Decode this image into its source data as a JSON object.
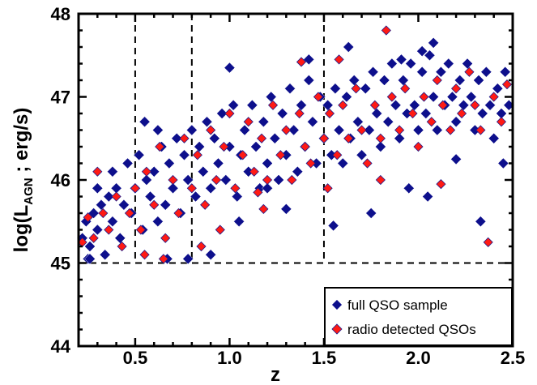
{
  "chart_data": {
    "type": "scatter",
    "title": "",
    "xlabel": "z",
    "ylabel": {
      "prefix": "log(L",
      "subscript": "AGN",
      "suffix": " ; erg/s)"
    },
    "xlim": [
      0.2,
      2.5
    ],
    "ylim": [
      44,
      48
    ],
    "x_ticks": [
      0.5,
      1.0,
      1.5,
      2.0,
      2.5
    ],
    "x_tick_labels": [
      "0.5",
      "1.0",
      "1.5",
      "2.0",
      "2.5"
    ],
    "y_ticks": [
      44,
      45,
      46,
      47,
      48
    ],
    "y_tick_labels": [
      "44",
      "45",
      "46",
      "47",
      "48"
    ],
    "reference_lines": {
      "vertical_dashed_x": [
        0.5,
        0.8,
        1.5
      ],
      "horizontal_dashed_y": 45,
      "vertical_top_y": 48
    },
    "legend": {
      "position": "bottom-right",
      "entries": [
        "full QSO sample",
        "radio detected QSOs"
      ]
    },
    "series": [
      {
        "name": "full QSO sample",
        "marker": "diamond",
        "color": "#0d0f8c",
        "points": [
          [
            0.22,
            45.3
          ],
          [
            0.24,
            45.5
          ],
          [
            0.26,
            45.2
          ],
          [
            0.28,
            45.6
          ],
          [
            0.3,
            45.4
          ],
          [
            0.32,
            45.7
          ],
          [
            0.34,
            45.1
          ],
          [
            0.36,
            45.8
          ],
          [
            0.38,
            45.5
          ],
          [
            0.4,
            45.9
          ],
          [
            0.42,
            45.3
          ],
          [
            0.44,
            45.7
          ],
          [
            0.46,
            46.2
          ],
          [
            0.48,
            45.6
          ],
          [
            0.5,
            45.9
          ],
          [
            0.52,
            46.3
          ],
          [
            0.54,
            45.4
          ],
          [
            0.56,
            46.0
          ],
          [
            0.58,
            45.8
          ],
          [
            0.6,
            46.1
          ],
          [
            0.62,
            45.5
          ],
          [
            0.64,
            46.4
          ],
          [
            0.66,
            45.7
          ],
          [
            0.68,
            46.2
          ],
          [
            0.7,
            45.9
          ],
          [
            0.72,
            46.5
          ],
          [
            0.74,
            45.6
          ],
          [
            0.76,
            46.3
          ],
          [
            0.78,
            46.0
          ],
          [
            0.8,
            46.6
          ],
          [
            0.82,
            45.8
          ],
          [
            0.84,
            46.4
          ],
          [
            0.86,
            46.1
          ],
          [
            0.88,
            46.7
          ],
          [
            0.9,
            45.9
          ],
          [
            0.92,
            46.5
          ],
          [
            0.94,
            46.2
          ],
          [
            0.96,
            46.8
          ],
          [
            0.98,
            46.0
          ],
          [
            1.0,
            46.4
          ],
          [
            1.02,
            46.9
          ],
          [
            1.04,
            45.8
          ],
          [
            1.06,
            46.3
          ],
          [
            1.08,
            46.6
          ],
          [
            1.1,
            46.1
          ],
          [
            1.12,
            46.9
          ],
          [
            1.14,
            46.4
          ],
          [
            1.16,
            45.9
          ],
          [
            1.18,
            46.7
          ],
          [
            1.2,
            46.2
          ],
          [
            1.22,
            47.0
          ],
          [
            1.24,
            46.5
          ],
          [
            1.26,
            46.0
          ],
          [
            1.28,
            46.8
          ],
          [
            1.3,
            46.3
          ],
          [
            1.32,
            47.1
          ],
          [
            1.34,
            46.6
          ],
          [
            1.36,
            46.1
          ],
          [
            1.38,
            46.9
          ],
          [
            1.4,
            46.4
          ],
          [
            1.42,
            47.2
          ],
          [
            1.44,
            46.7
          ],
          [
            1.46,
            46.2
          ],
          [
            1.48,
            47.0
          ],
          [
            1.5,
            46.5
          ],
          [
            1.52,
            46.9
          ],
          [
            1.54,
            46.3
          ],
          [
            1.56,
            47.1
          ],
          [
            1.58,
            46.6
          ],
          [
            1.6,
            46.2
          ],
          [
            1.62,
            47.0
          ],
          [
            1.64,
            46.5
          ],
          [
            1.66,
            47.2
          ],
          [
            1.68,
            46.7
          ],
          [
            1.7,
            46.3
          ],
          [
            1.72,
            47.1
          ],
          [
            1.74,
            46.6
          ],
          [
            1.76,
            47.3
          ],
          [
            1.78,
            46.8
          ],
          [
            1.8,
            46.4
          ],
          [
            1.82,
            47.2
          ],
          [
            1.84,
            46.7
          ],
          [
            1.86,
            47.4
          ],
          [
            1.88,
            46.9
          ],
          [
            1.9,
            46.5
          ],
          [
            1.92,
            47.2
          ],
          [
            1.94,
            46.8
          ],
          [
            1.96,
            47.4
          ],
          [
            1.98,
            46.9
          ],
          [
            2.0,
            46.6
          ],
          [
            2.02,
            47.3
          ],
          [
            2.04,
            46.8
          ],
          [
            2.06,
            47.5
          ],
          [
            2.08,
            47.0
          ],
          [
            2.1,
            46.6
          ],
          [
            2.12,
            47.3
          ],
          [
            2.14,
            46.9
          ],
          [
            2.16,
            47.4
          ],
          [
            2.18,
            47.0
          ],
          [
            2.2,
            46.7
          ],
          [
            2.22,
            47.2
          ],
          [
            2.24,
            46.9
          ],
          [
            2.26,
            47.4
          ],
          [
            2.28,
            47.0
          ],
          [
            2.3,
            46.6
          ],
          [
            2.32,
            47.2
          ],
          [
            2.34,
            46.8
          ],
          [
            2.36,
            47.3
          ],
          [
            2.38,
            46.9
          ],
          [
            2.4,
            46.5
          ],
          [
            2.42,
            47.1
          ],
          [
            2.44,
            46.8
          ],
          [
            2.46,
            47.3
          ],
          [
            2.48,
            46.9
          ],
          [
            0.55,
            46.7
          ],
          [
            0.62,
            46.6
          ],
          [
            1.0,
            47.35
          ],
          [
            1.42,
            47.45
          ],
          [
            1.63,
            47.6
          ],
          [
            2.02,
            47.55
          ],
          [
            2.08,
            47.65
          ],
          [
            1.91,
            47.45
          ],
          [
            2.33,
            45.5
          ],
          [
            0.9,
            45.1
          ],
          [
            0.78,
            45.05
          ],
          [
            0.67,
            45.05
          ],
          [
            1.55,
            45.45
          ],
          [
            1.75,
            45.6
          ],
          [
            2.05,
            45.8
          ],
          [
            1.3,
            45.65
          ],
          [
            1.2,
            45.9
          ],
          [
            1.05,
            45.5
          ],
          [
            0.25,
            45.05
          ],
          [
            0.3,
            45.9
          ],
          [
            0.38,
            46.1
          ],
          [
            0.26,
            45.05
          ],
          [
            2.45,
            46.2
          ],
          [
            2.2,
            46.25
          ],
          [
            1.95,
            45.9
          ]
        ]
      },
      {
        "name": "radio detected QSOs",
        "marker": "diamond",
        "color": "#ff1a14",
        "points": [
          [
            0.22,
            45.25
          ],
          [
            0.25,
            45.55
          ],
          [
            0.28,
            45.3
          ],
          [
            0.3,
            46.1
          ],
          [
            0.33,
            45.6
          ],
          [
            0.36,
            45.4
          ],
          [
            0.4,
            45.8
          ],
          [
            0.43,
            45.2
          ],
          [
            0.47,
            45.6
          ],
          [
            0.5,
            45.9
          ],
          [
            0.53,
            45.4
          ],
          [
            0.56,
            46.1
          ],
          [
            0.6,
            45.7
          ],
          [
            0.63,
            46.4
          ],
          [
            0.66,
            45.3
          ],
          [
            0.7,
            46.0
          ],
          [
            0.73,
            45.6
          ],
          [
            0.76,
            46.5
          ],
          [
            0.8,
            45.9
          ],
          [
            0.83,
            46.3
          ],
          [
            0.87,
            45.7
          ],
          [
            0.9,
            46.6
          ],
          [
            0.93,
            46.0
          ],
          [
            0.97,
            46.4
          ],
          [
            1.0,
            46.8
          ],
          [
            1.03,
            45.9
          ],
          [
            1.07,
            46.3
          ],
          [
            1.1,
            46.7
          ],
          [
            1.13,
            46.1
          ],
          [
            1.17,
            46.5
          ],
          [
            1.2,
            46.0
          ],
          [
            1.23,
            46.9
          ],
          [
            1.27,
            46.3
          ],
          [
            1.3,
            46.6
          ],
          [
            1.33,
            46.0
          ],
          [
            1.37,
            46.8
          ],
          [
            1.4,
            46.4
          ],
          [
            1.43,
            46.2
          ],
          [
            1.47,
            47.0
          ],
          [
            1.5,
            46.5
          ],
          [
            1.53,
            46.8
          ],
          [
            1.57,
            46.3
          ],
          [
            1.6,
            46.9
          ],
          [
            1.63,
            46.5
          ],
          [
            1.67,
            47.1
          ],
          [
            1.7,
            46.6
          ],
          [
            1.73,
            46.2
          ],
          [
            1.77,
            46.9
          ],
          [
            1.8,
            46.5
          ],
          [
            1.83,
            47.8
          ],
          [
            1.86,
            47.0
          ],
          [
            1.9,
            46.6
          ],
          [
            1.93,
            47.1
          ],
          [
            1.97,
            46.8
          ],
          [
            2.0,
            46.4
          ],
          [
            2.03,
            47.0
          ],
          [
            2.07,
            46.7
          ],
          [
            2.1,
            47.2
          ],
          [
            2.13,
            46.9
          ],
          [
            2.17,
            46.6
          ],
          [
            2.2,
            47.1
          ],
          [
            2.23,
            46.8
          ],
          [
            2.27,
            47.3
          ],
          [
            2.3,
            46.9
          ],
          [
            2.33,
            46.6
          ],
          [
            2.37,
            45.25
          ],
          [
            2.4,
            47.0
          ],
          [
            2.44,
            46.7
          ],
          [
            2.47,
            47.15
          ],
          [
            1.38,
            47.42
          ],
          [
            1.58,
            47.45
          ],
          [
            1.18,
            45.65
          ],
          [
            1.52,
            45.9
          ],
          [
            2.12,
            45.95
          ],
          [
            0.95,
            45.4
          ],
          [
            0.55,
            45.1
          ],
          [
            0.65,
            45.05
          ],
          [
            0.85,
            45.2
          ],
          [
            1.15,
            45.85
          ],
          [
            1.8,
            46.0
          ]
        ]
      }
    ]
  }
}
